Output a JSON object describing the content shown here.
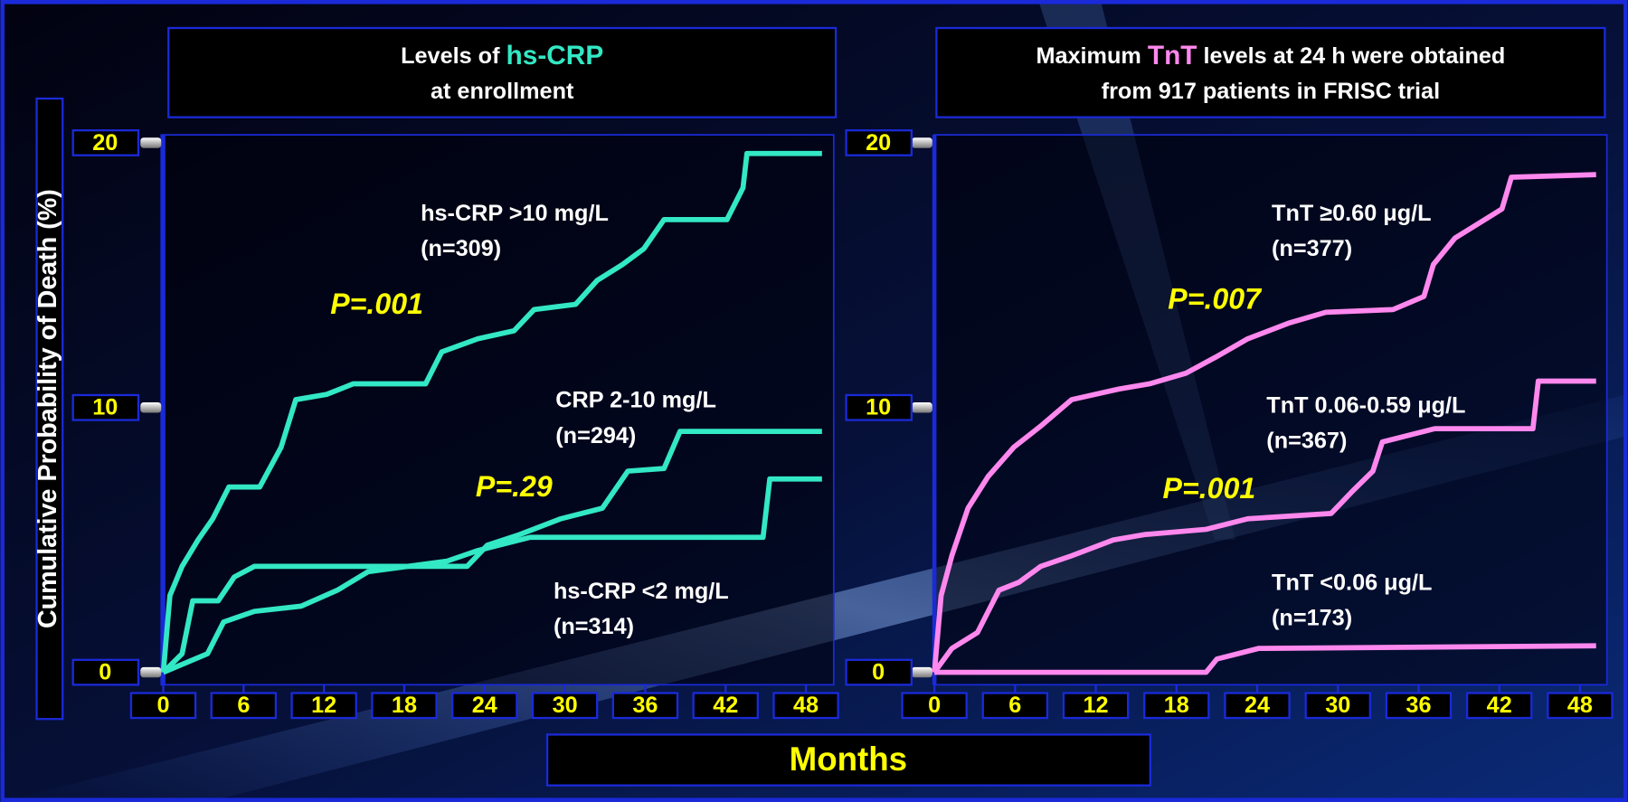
{
  "shared": {
    "ylabel": "Cumulative Probability of Death (%)",
    "xlabel": "Months"
  },
  "chart_data": [
    {
      "type": "line",
      "title_lines": [
        [
          "Levels of",
          "hs-CRP"
        ],
        [
          "at enrollment"
        ]
      ],
      "title_highlight_color": "#33e8c4",
      "xlim": [
        0,
        50
      ],
      "ylim": [
        0,
        20.3
      ],
      "xticks": [
        0,
        6,
        12,
        18,
        24,
        30,
        36,
        42,
        48
      ],
      "yticks": [
        0,
        10,
        20
      ],
      "series": [
        {
          "name": "hs-CRP >10 mg/L",
          "n_label": "(n=309)",
          "color": "#33e8c4",
          "x": [
            0,
            0.5,
            1.4,
            2.6,
            3.7,
            4.9,
            7.2,
            8.8,
            9.9,
            12.2,
            14.2,
            19.6,
            20.8,
            23.5,
            26.2,
            27.7,
            30.8,
            32.4,
            34.3,
            35.9,
            37.4,
            42.1,
            43.3,
            43.6,
            49.2
          ],
          "values": [
            0,
            2.9,
            4.0,
            5.0,
            5.8,
            7.0,
            7.0,
            8.5,
            10.3,
            10.5,
            10.9,
            10.9,
            12.1,
            12.6,
            12.9,
            13.7,
            13.9,
            14.8,
            15.4,
            16.0,
            17.1,
            17.1,
            18.3,
            19.6,
            19.6
          ]
        },
        {
          "name": "CRP 2-10 mg/L",
          "n_label": "(n=294)",
          "color": "#33e8c4",
          "x": [
            0,
            1.4,
            2.2,
            4.1,
            5.3,
            6.8,
            22.7,
            24.2,
            26.6,
            29.7,
            32.8,
            34.7,
            37.4,
            38.6,
            49.2
          ],
          "values": [
            0,
            0.7,
            2.7,
            2.7,
            3.6,
            4.0,
            4.0,
            4.8,
            5.2,
            5.8,
            6.2,
            7.6,
            7.7,
            9.1,
            9.1
          ]
        },
        {
          "name": "hs-CRP <2 mg/L",
          "n_label": "(n=314)",
          "color": "#33e8c4",
          "x": [
            0,
            3.3,
            4.5,
            6.8,
            10.3,
            13.0,
            15.3,
            21.2,
            23.5,
            27.4,
            44.8,
            45.3,
            49.2
          ],
          "values": [
            0,
            0.7,
            1.9,
            2.3,
            2.5,
            3.1,
            3.8,
            4.2,
            4.6,
            5.1,
            5.1,
            7.3,
            7.3
          ]
        }
      ],
      "annotations": [
        {
          "text": "P=.001"
        },
        {
          "text": "P=.29"
        }
      ]
    },
    {
      "type": "line",
      "title_lines": [
        [
          "Maximum",
          "TnT",
          "levels at 24 h were obtained"
        ],
        [
          "from 917 patients  in FRISC trial"
        ]
      ],
      "title_highlight_color": "#ff88ee",
      "xlim": [
        0,
        50
      ],
      "ylim": [
        0,
        20.3
      ],
      "xticks": [
        0,
        6,
        12,
        18,
        24,
        30,
        36,
        42,
        48
      ],
      "yticks": [
        0,
        10,
        20
      ],
      "series": [
        {
          "name": "TnT ≥0.60 μg/L",
          "n_label": "(n=377)",
          "color": "#ff88ee",
          "x": [
            0,
            0.5,
            1.3,
            2.5,
            4.0,
            5.9,
            7.9,
            10.2,
            13.7,
            16.0,
            18.7,
            20.9,
            23.3,
            26.4,
            29.1,
            34.1,
            36.4,
            37.1,
            38.7,
            42.2,
            42.9,
            49.2
          ],
          "values": [
            0,
            2.9,
            4.4,
            6.2,
            7.4,
            8.5,
            9.3,
            10.3,
            10.7,
            10.9,
            11.3,
            11.9,
            12.6,
            13.2,
            13.6,
            13.7,
            14.2,
            15.4,
            16.4,
            17.5,
            18.7,
            18.8
          ]
        },
        {
          "name": "TnT 0.06-0.59 μg/L",
          "n_label": "(n=367)",
          "color": "#ff88ee",
          "x": [
            0,
            1.3,
            3.2,
            4.8,
            6.3,
            7.9,
            10.2,
            13.3,
            15.6,
            20.2,
            23.3,
            29.5,
            31.0,
            32.6,
            33.3,
            37.2,
            44.5,
            44.9,
            49.2
          ],
          "values": [
            0,
            0.9,
            1.5,
            3.1,
            3.4,
            4.0,
            4.4,
            5.0,
            5.2,
            5.4,
            5.8,
            6.0,
            6.8,
            7.6,
            8.7,
            9.2,
            9.2,
            11.0,
            11.0
          ]
        },
        {
          "name": "TnT <0.06 μg/L",
          "n_label": "(n=173)",
          "color": "#ff88ee",
          "x": [
            0,
            20.2,
            21.0,
            24.1,
            49.2
          ],
          "values": [
            0,
            0,
            0.5,
            0.9,
            1.0
          ]
        }
      ],
      "annotations": [
        {
          "text": "P=.007"
        },
        {
          "text": "P=.001"
        }
      ]
    }
  ]
}
